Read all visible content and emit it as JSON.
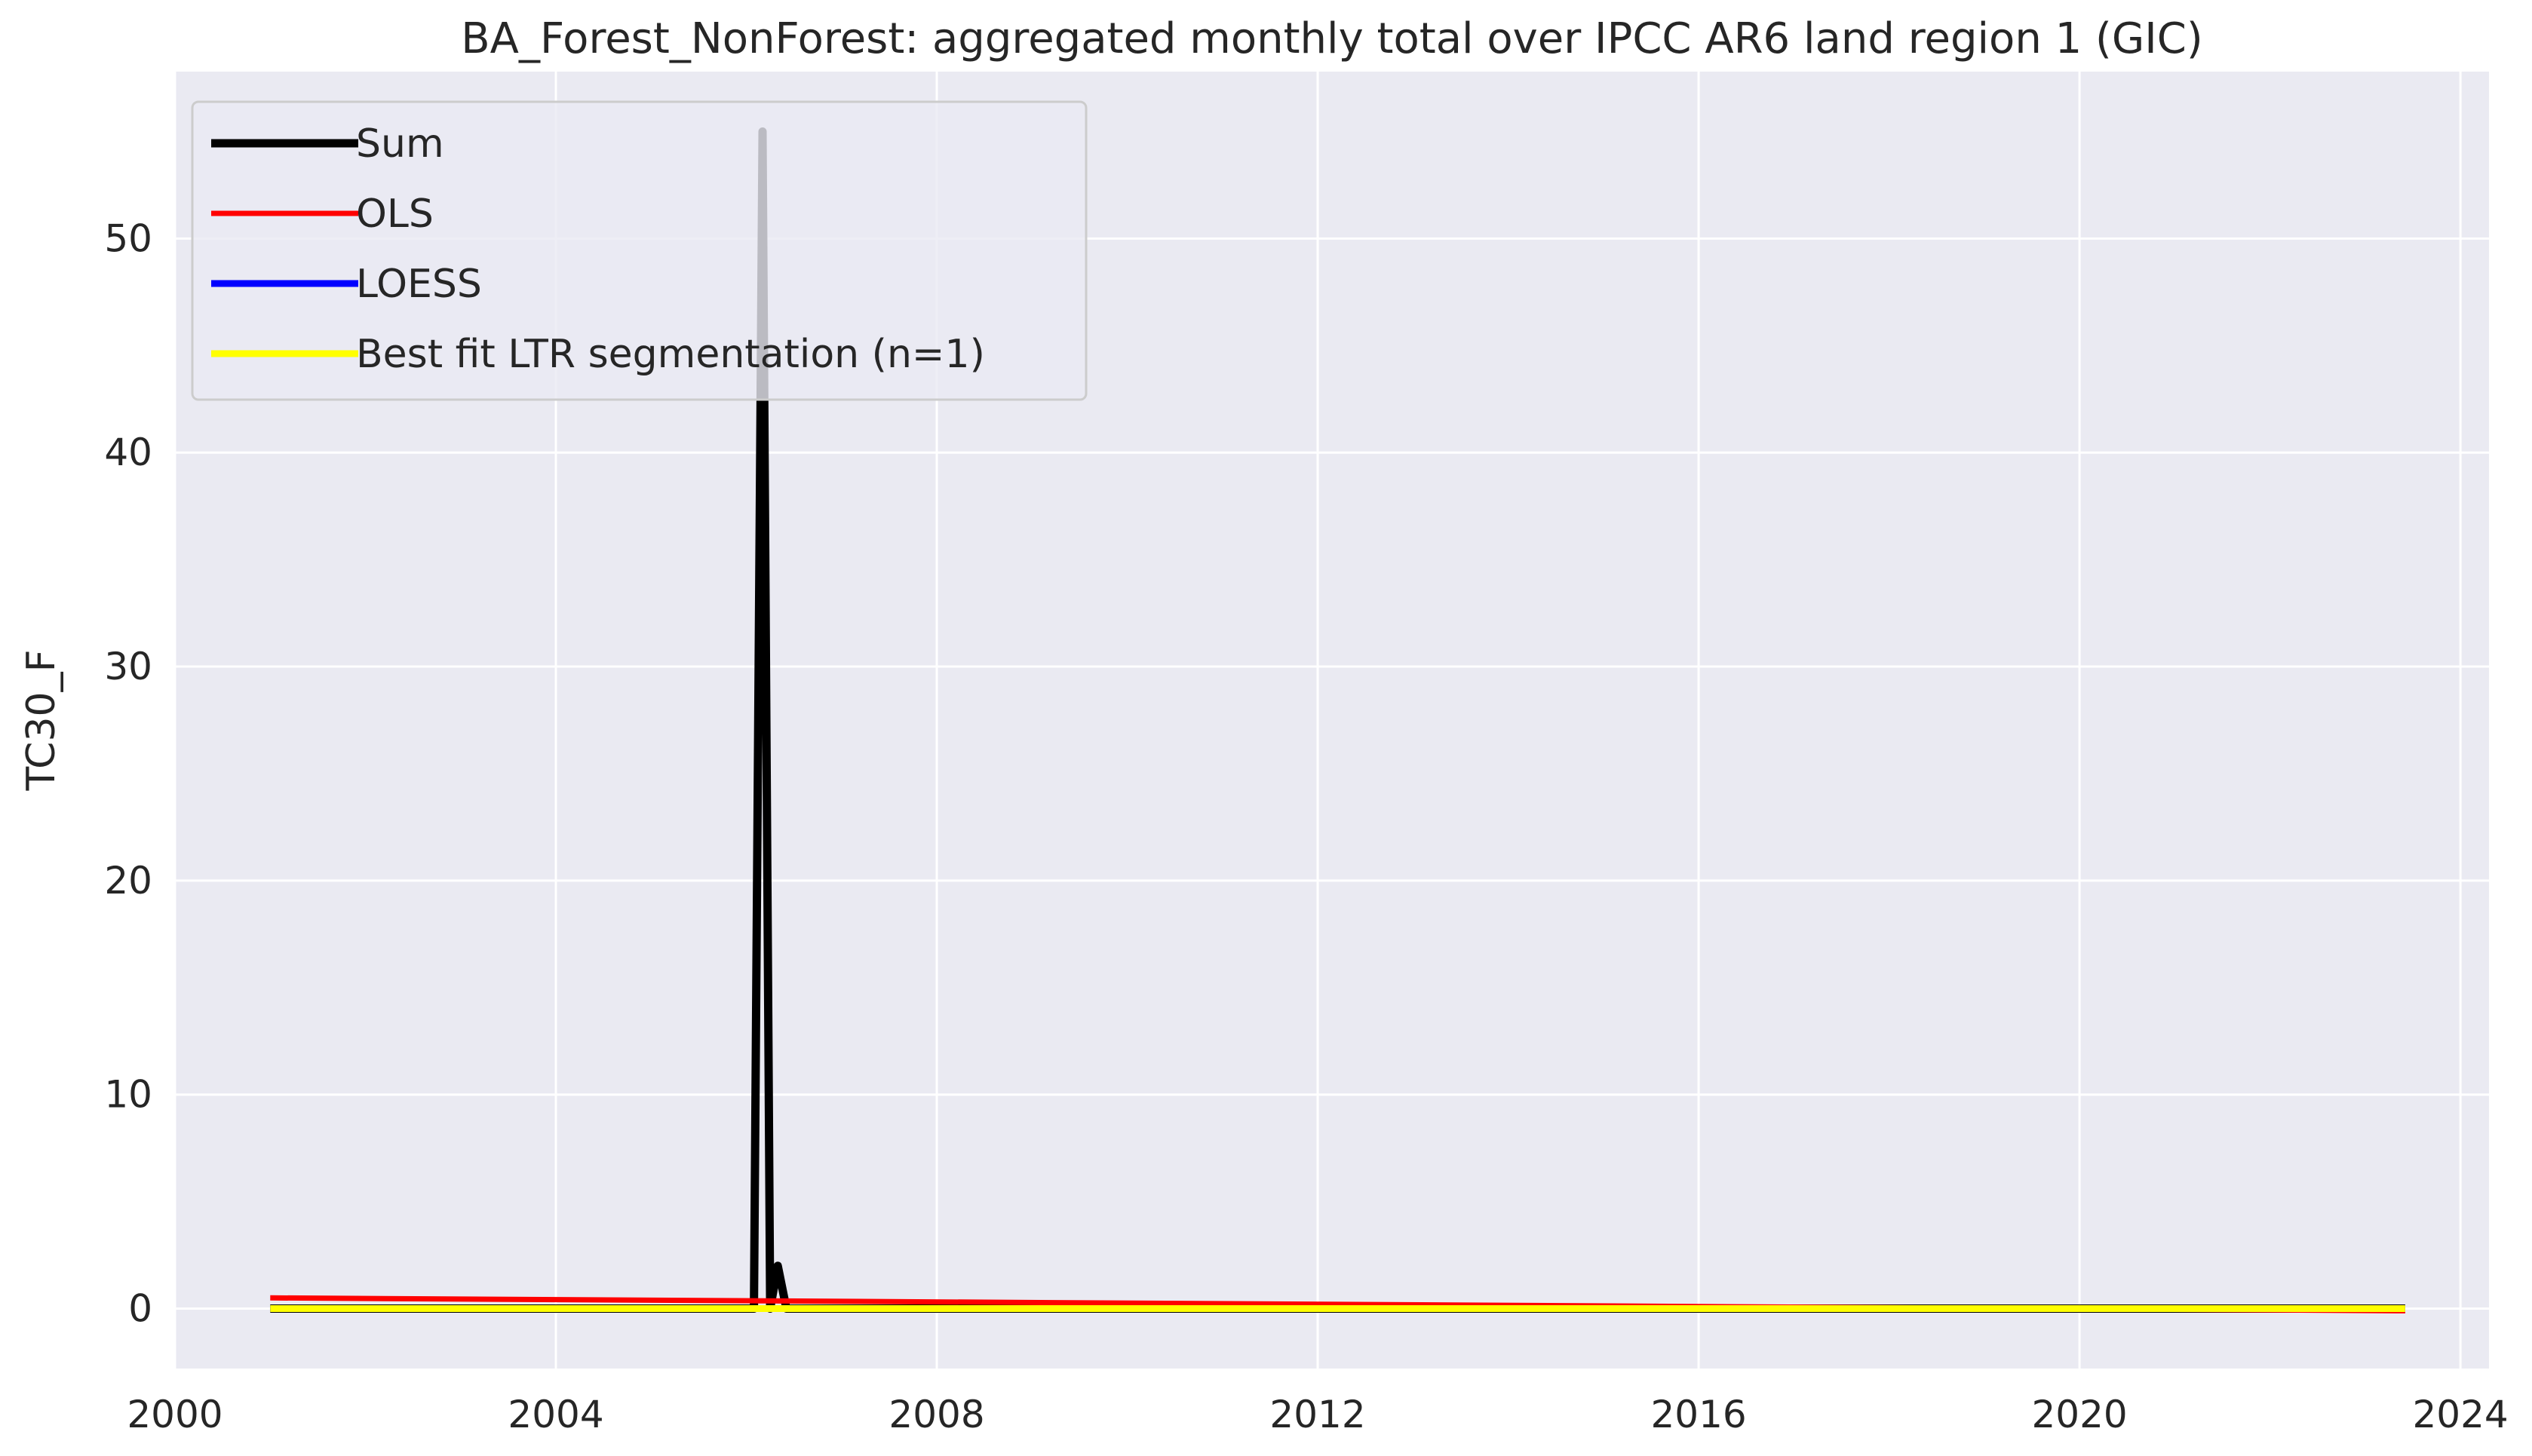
{
  "chart_data": {
    "type": "line",
    "title": "BA_Forest_NonForest: aggregated monthly total over IPCC AR6 land region 1 (GIC)",
    "xlabel": "",
    "ylabel": "TC30_F",
    "xlim": [
      2000,
      2024.3
    ],
    "ylim": [
      -2.8,
      57.8
    ],
    "x_ticks": [
      2000,
      2004,
      2008,
      2012,
      2016,
      2020,
      2024
    ],
    "x_tick_labels": [
      "2000",
      "2004",
      "2008",
      "2012",
      "2016",
      "2020",
      "2024"
    ],
    "y_ticks": [
      0,
      10,
      20,
      30,
      40,
      50
    ],
    "y_tick_labels": [
      "0",
      "10",
      "20",
      "30",
      "40",
      "50"
    ],
    "grid": true,
    "legend_position": "top-left",
    "background": "#eaeaf2",
    "series": [
      {
        "name": "Sum",
        "color": "#000000",
        "x": [
          2001.0,
          2006.08,
          2006.17,
          2006.25,
          2006.33,
          2006.42,
          2023.42
        ],
        "y": [
          0,
          0,
          55,
          0,
          2,
          0,
          0
        ]
      },
      {
        "name": "OLS",
        "color": "#ff0000",
        "x": [
          2001.0,
          2023.42
        ],
        "y": [
          0.5,
          -0.1
        ]
      },
      {
        "name": "LOESS",
        "color": "#0000ff",
        "x": [
          2001.0,
          2023.42
        ],
        "y": [
          0,
          0
        ]
      },
      {
        "name": "Best fit LTR segmentation (n=1)",
        "color": "#ffff00",
        "x": [
          2001.0,
          2023.42
        ],
        "y": [
          0,
          0
        ]
      }
    ]
  }
}
